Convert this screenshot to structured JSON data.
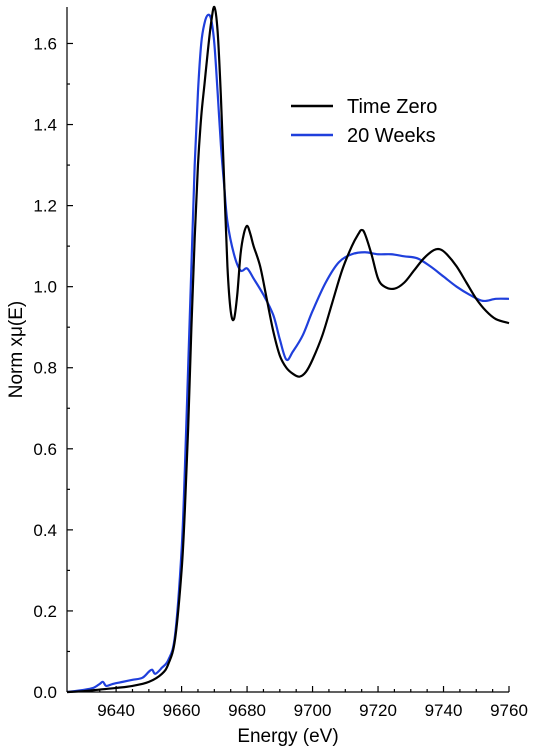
{
  "chart_data": {
    "type": "line",
    "xlabel": "Energy (eV)",
    "ylabel": "Norm xμ(E)",
    "xlim": [
      9625,
      9760
    ],
    "ylim": [
      0.0,
      1.69
    ],
    "xticks": [
      9640,
      9660,
      9680,
      9700,
      9720,
      9740,
      9760
    ],
    "xtick_labels": [
      "9640",
      "9660",
      "9680",
      "9700",
      "9720",
      "9740",
      "9760"
    ],
    "yticks": [
      0.0,
      0.2,
      0.4,
      0.6,
      0.8,
      1.0,
      1.2,
      1.4,
      1.6
    ],
    "ytick_labels": [
      "0.0",
      "0.2",
      "0.4",
      "0.6",
      "0.8",
      "1.0",
      "1.2",
      "1.4",
      "1.6"
    ],
    "grid": false,
    "legend_position": "top-right",
    "series": [
      {
        "name": "Time Zero",
        "color": "#000000",
        "x": [
          9625,
          9630,
          9635,
          9640,
          9645,
          9650,
          9654,
          9656,
          9658,
          9660,
          9661,
          9662,
          9663,
          9664,
          9665,
          9666,
          9667,
          9668,
          9669,
          9670,
          9671,
          9672,
          9673,
          9674,
          9675,
          9676,
          9677,
          9678,
          9679,
          9680,
          9681,
          9682,
          9684,
          9686,
          9688,
          9690,
          9692,
          9694,
          9696,
          9698,
          9700,
          9703,
          9706,
          9709,
          9712,
          9714,
          9715,
          9716,
          9718,
          9720,
          9722,
          9725,
          9728,
          9731,
          9734,
          9737,
          9739,
          9741,
          9744,
          9747,
          9750,
          9753,
          9756,
          9760
        ],
        "y": [
          0.0,
          0.002,
          0.006,
          0.01,
          0.015,
          0.025,
          0.045,
          0.07,
          0.13,
          0.3,
          0.45,
          0.65,
          0.9,
          1.12,
          1.3,
          1.42,
          1.5,
          1.58,
          1.65,
          1.69,
          1.63,
          1.47,
          1.26,
          1.05,
          0.94,
          0.92,
          0.98,
          1.08,
          1.13,
          1.15,
          1.13,
          1.1,
          1.05,
          0.97,
          0.89,
          0.83,
          0.8,
          0.785,
          0.778,
          0.79,
          0.82,
          0.88,
          0.96,
          1.04,
          1.1,
          1.13,
          1.14,
          1.13,
          1.08,
          1.02,
          1.0,
          0.995,
          1.01,
          1.04,
          1.07,
          1.09,
          1.092,
          1.08,
          1.05,
          1.01,
          0.97,
          0.94,
          0.92,
          0.91
        ]
      },
      {
        "name": "20 Weeks",
        "color": "#1f3fdc",
        "x": [
          9625,
          9630,
          9633,
          9635,
          9636,
          9637,
          9639,
          9642,
          9645,
          9648,
          9650,
          9651,
          9652,
          9654,
          9656,
          9658,
          9660,
          9661,
          9662,
          9663,
          9664,
          9665,
          9666,
          9667,
          9668,
          9669,
          9670,
          9671,
          9672,
          9673,
          9674,
          9676,
          9678,
          9680,
          9682,
          9685,
          9688,
          9690,
          9692,
          9694,
          9697,
          9700,
          9704,
          9708,
          9712,
          9716,
          9720,
          9724,
          9728,
          9732,
          9736,
          9740,
          9744,
          9748,
          9752,
          9756,
          9760
        ],
        "y": [
          0.0,
          0.005,
          0.01,
          0.02,
          0.025,
          0.015,
          0.02,
          0.025,
          0.03,
          0.035,
          0.05,
          0.055,
          0.045,
          0.06,
          0.08,
          0.14,
          0.35,
          0.55,
          0.8,
          1.05,
          1.3,
          1.48,
          1.6,
          1.65,
          1.67,
          1.66,
          1.6,
          1.48,
          1.35,
          1.25,
          1.16,
          1.08,
          1.04,
          1.045,
          1.02,
          0.98,
          0.93,
          0.87,
          0.82,
          0.84,
          0.88,
          0.94,
          1.01,
          1.06,
          1.08,
          1.085,
          1.08,
          1.08,
          1.075,
          1.07,
          1.05,
          1.025,
          1.0,
          0.98,
          0.965,
          0.97,
          0.97
        ]
      }
    ]
  }
}
